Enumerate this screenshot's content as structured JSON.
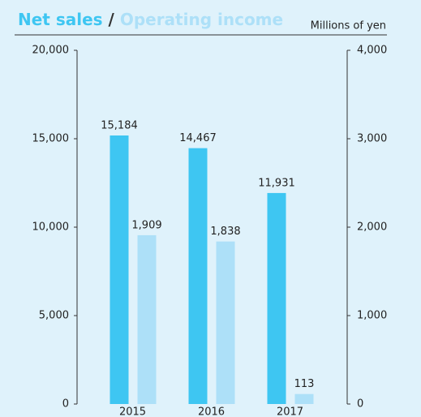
{
  "chart_data": {
    "type": "bar",
    "title_separator": "/",
    "subtitle": "Millions of yen",
    "categories": [
      "2015",
      "2016",
      "2017"
    ],
    "series": [
      {
        "name": "Net sales",
        "color": "#3ec6f2",
        "values": [
          15184,
          14467,
          11931
        ],
        "value_labels": [
          "15,184",
          "14,467",
          "11,931"
        ]
      },
      {
        "name": "Operating income",
        "color": "#ade0f8",
        "axis": "y2",
        "values": [
          1909,
          1838,
          113
        ],
        "value_labels": [
          "1,909",
          "1,838",
          "113"
        ]
      }
    ],
    "ylim": [
      0,
      20000
    ],
    "yticks": [
      0,
      {
        "value": 5000,
        "label": "5,000"
      },
      {
        "value": 10000,
        "label": "10,000"
      },
      {
        "value": 15000,
        "label": "15,000"
      },
      {
        "value": 20000,
        "label": "20,000"
      }
    ],
    "y2lim": [
      0,
      4000
    ],
    "y2ticks": [
      0,
      {
        "value": 1000,
        "label": "1,000"
      },
      {
        "value": 2000,
        "label": "2,000"
      },
      {
        "value": 3000,
        "label": "3,000"
      },
      {
        "value": 4000,
        "label": "4,000"
      }
    ]
  }
}
